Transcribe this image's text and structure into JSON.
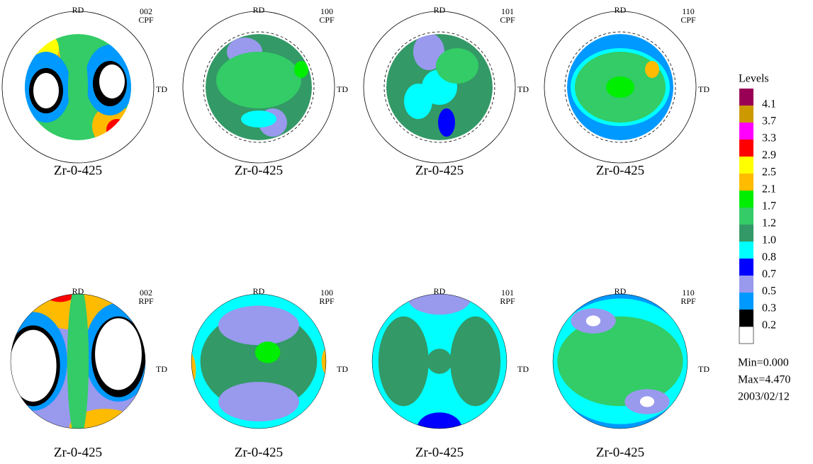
{
  "panels": [
    {
      "rd": "RD",
      "td": "TD",
      "plane": "002",
      "kind": "CPF",
      "label": "Zr-0-425"
    },
    {
      "rd": "RD",
      "td": "TD",
      "plane": "100",
      "kind": "CPF",
      "label": "Zr-0-425"
    },
    {
      "rd": "RD",
      "td": "TD",
      "plane": "101",
      "kind": "CPF",
      "label": "Zr-0-425"
    },
    {
      "rd": "RD",
      "td": "TD",
      "plane": "110",
      "kind": "CPF",
      "label": "Zr-0-425"
    },
    {
      "rd": "RD",
      "td": "TD",
      "plane": "002",
      "kind": "RPF",
      "label": "Zr-0-425"
    },
    {
      "rd": "RD",
      "td": "TD",
      "plane": "100",
      "kind": "RPF",
      "label": "Zr-0-425"
    },
    {
      "rd": "RD",
      "td": "TD",
      "plane": "101",
      "kind": "RPF",
      "label": "Zr-0-425"
    },
    {
      "rd": "RD",
      "td": "TD",
      "plane": "110",
      "kind": "RPF",
      "label": "Zr-0-425"
    }
  ],
  "legend": {
    "title": "Levels",
    "labels": [
      "4.1",
      "3.7",
      "3.3",
      "2.9",
      "2.5",
      "2.1",
      "1.7",
      "1.2",
      "1.0",
      "0.8",
      "0.7",
      "0.5",
      "0.3",
      "0.2"
    ],
    "colors": [
      "#990055",
      "#cc9900",
      "#ff00ff",
      "#ff0000",
      "#ffff00",
      "#ffbb00",
      "#00ee00",
      "#33cc66",
      "#339966",
      "#00ffff",
      "#0000ff",
      "#9999ee",
      "#0099ff",
      "#000000",
      "#ffffff"
    ],
    "min": "Min=0.000",
    "max": "Max=4.470",
    "date": "2003/02/12"
  }
}
